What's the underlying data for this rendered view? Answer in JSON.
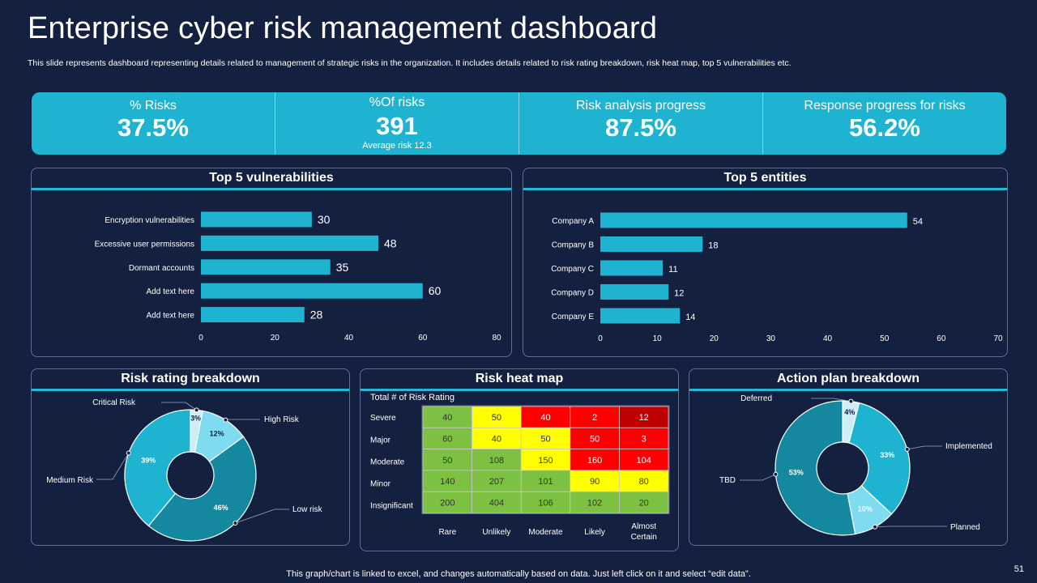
{
  "title": "Enterprise cyber risk management dashboard",
  "subtitle": "This slide represents dashboard representing details related to management of strategic risks in the organization. It includes details related to risk rating breakdown, risk heat map, top 5 vulnerabilities etc.",
  "kpis": [
    {
      "label": "% Risks",
      "value": "37.5%"
    },
    {
      "label": "%Of risks",
      "value": "391",
      "note": "Average risk 12.3"
    },
    {
      "label": "Risk analysis progress",
      "value": "87.5%"
    },
    {
      "label": "Response progress for risks",
      "value": "56.2%"
    }
  ],
  "panels": {
    "vulnerabilities": "Top 5 vulnerabilities",
    "entities": "Top 5 entities",
    "rating": "Risk rating breakdown",
    "heatmap": "Risk heat map",
    "action": "Action plan breakdown"
  },
  "footer": "This graph/chart is linked to excel, and changes automatically based on data. Just left click on it and select “edit data”.",
  "page_number": "51",
  "colors": {
    "background": "#14203f",
    "kpi_band": "#1eb3d1",
    "bar": "#1eb3d1",
    "panel_border": "#5f6f95",
    "heat_green": "#7cc142",
    "heat_yellow": "#ffff00",
    "heat_red": "#ff0000",
    "heat_darkred": "#c00000"
  },
  "chart_data": [
    {
      "id": "vulnerabilities",
      "type": "bar",
      "orientation": "horizontal",
      "title": "Top 5 vulnerabilities",
      "categories": [
        "Encryption vulnerabilities",
        "Excessive user permissions",
        "Dormant accounts",
        "Add text here",
        "Add text here"
      ],
      "values": [
        30,
        48,
        35,
        60,
        28
      ],
      "xlim": [
        0,
        80
      ],
      "xticks": [
        "0",
        "20",
        "40",
        "60",
        "80"
      ]
    },
    {
      "id": "entities",
      "type": "bar",
      "orientation": "horizontal",
      "title": "Top 5 entities",
      "categories": [
        "Company A",
        "Company B",
        "Company C",
        "Company D",
        "Company E"
      ],
      "values": [
        54,
        18,
        11,
        12,
        14
      ],
      "xlim": [
        0,
        70
      ],
      "xticks": [
        "0",
        "10",
        "20",
        "30",
        "40",
        "50",
        "60",
        "70"
      ]
    },
    {
      "id": "rating",
      "type": "pie",
      "style": "donut",
      "title": "Risk rating breakdown",
      "slices": [
        {
          "label": "Critical Risk",
          "value": 3,
          "pct_label": "3%",
          "color": "#cdeef6"
        },
        {
          "label": "High Risk",
          "value": 12,
          "pct_label": "12%",
          "color": "#7fdcf0"
        },
        {
          "label": "Low risk",
          "value": 46,
          "pct_label": "46%",
          "color": "#13889e"
        },
        {
          "label": "Medium Risk",
          "value": 39,
          "pct_label": "39%",
          "color": "#1eb3d1"
        }
      ]
    },
    {
      "id": "heatmap",
      "type": "heatmap",
      "title": "Risk heat map",
      "subtitle": "Total # of Risk Rating",
      "rows": [
        "Severe",
        "Major",
        "Moderate",
        "Minor",
        "Insignificant"
      ],
      "cols": [
        "Rare",
        "Unlikely",
        "Moderate",
        "Likely",
        "Almost Certain"
      ],
      "values": [
        [
          40,
          50,
          40,
          2,
          12
        ],
        [
          60,
          40,
          50,
          50,
          3
        ],
        [
          50,
          108,
          150,
          160,
          104
        ],
        [
          140,
          207,
          101,
          90,
          80
        ],
        [
          200,
          404,
          106,
          102,
          20
        ]
      ],
      "levels": [
        [
          "green",
          "yellow",
          "red",
          "red",
          "darkred"
        ],
        [
          "green",
          "yellow",
          "yellow",
          "red",
          "red"
        ],
        [
          "green",
          "green",
          "yellow",
          "red",
          "red"
        ],
        [
          "green",
          "green",
          "green",
          "yellow",
          "yellow"
        ],
        [
          "green",
          "green",
          "green",
          "green",
          "green"
        ]
      ]
    },
    {
      "id": "action",
      "type": "pie",
      "style": "donut",
      "title": "Action plan breakdown",
      "slices": [
        {
          "label": "Deferred",
          "value": 4,
          "pct_label": "4%",
          "color": "#cdeef6"
        },
        {
          "label": "Implemented",
          "value": 33,
          "pct_label": "33%",
          "color": "#1eb3d1"
        },
        {
          "label": "Planned",
          "value": 10,
          "pct_label": "10%",
          "color": "#7fdcf0"
        },
        {
          "label": "TBD",
          "value": 53,
          "pct_label": "53%",
          "color": "#13889e"
        }
      ]
    }
  ]
}
